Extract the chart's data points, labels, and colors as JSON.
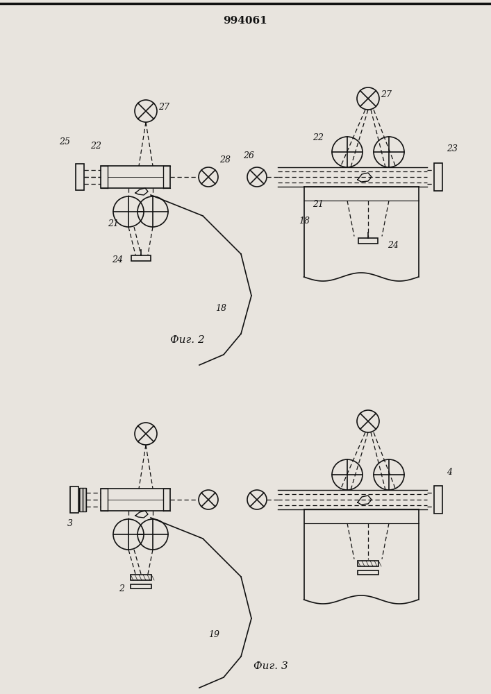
{
  "title": "994061",
  "fig2_label": "Фиг. 2",
  "fig3_label": "Фиг. 3",
  "bg_color": "#e8e4de",
  "line_color": "#111111"
}
